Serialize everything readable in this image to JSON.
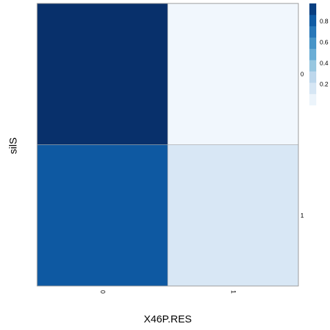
{
  "chart_data": {
    "type": "heatmap",
    "title": "",
    "xlabel": "X46P.RES",
    "ylabel": "silS",
    "x_categories": [
      "0",
      "1"
    ],
    "y_categories": [
      "0",
      "1"
    ],
    "cells": [
      {
        "x": "0",
        "y": "0",
        "value": 0.97
      },
      {
        "x": "1",
        "y": "0",
        "value": 0.03
      },
      {
        "x": "0",
        "y": "1",
        "value": 0.82
      },
      {
        "x": "1",
        "y": "1",
        "value": 0.15
      }
    ],
    "color_scale": {
      "min": 0,
      "max": 0.97,
      "ticks": [
        "0.2",
        "0.4",
        "0.6",
        "0.8"
      ],
      "tick_values": [
        0.2,
        0.4,
        0.6,
        0.8
      ],
      "palette": [
        "#f7fbff",
        "#deebf7",
        "#c6dbef",
        "#9ecae1",
        "#6baed6",
        "#4292c6",
        "#2171b5",
        "#08519c",
        "#08306b"
      ]
    },
    "legend_position": "right",
    "grid": false
  }
}
